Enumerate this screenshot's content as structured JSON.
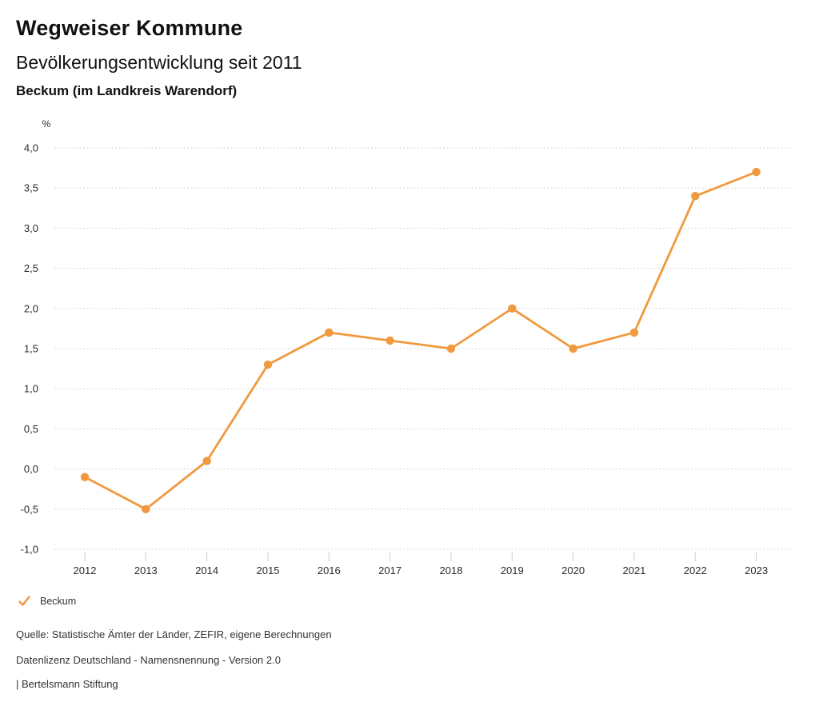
{
  "header": {
    "title": "Wegweiser Kommune",
    "subtitle": "Bevölkerungsentwicklung seit 2011",
    "location": "Beckum (im Landkreis Warendorf)"
  },
  "legend": {
    "items": [
      {
        "label": "Beckum",
        "color": "#F0993E",
        "marker": "check-icon"
      }
    ]
  },
  "footer": {
    "source": "Quelle: Statistische Ämter der Länder, ZEFIR, eigene Berechnungen",
    "license": "Datenlizenz Deutschland - Namensnennung - Version 2.0",
    "publisher": "| Bertelsmann Stiftung"
  },
  "chart_data": {
    "type": "line",
    "title": "Bevölkerungsentwicklung seit 2011",
    "subtitle": "Beckum (im Landkreis Warendorf)",
    "unit": "%",
    "x": [
      "2012",
      "2013",
      "2014",
      "2015",
      "2016",
      "2017",
      "2018",
      "2019",
      "2020",
      "2021",
      "2022",
      "2023"
    ],
    "series": [
      {
        "name": "Beckum",
        "color": "#F0993E",
        "values": [
          -0.1,
          -0.5,
          0.1,
          1.3,
          1.7,
          1.6,
          1.5,
          2.0,
          1.5,
          1.7,
          3.4,
          3.7
        ]
      }
    ],
    "ylabel": "%",
    "ylim": [
      -1.0,
      4.0
    ],
    "ytick_step": 0.5,
    "ytick_labels": [
      "4,0",
      "3,5",
      "3,0",
      "2,5",
      "2,0",
      "1,5",
      "1,0",
      "0,5",
      "0,0",
      "-0,5",
      "-1,0"
    ],
    "grid": "horizontal-dotted",
    "grid_color": "#cccccc",
    "legend_position": "bottom-left"
  }
}
